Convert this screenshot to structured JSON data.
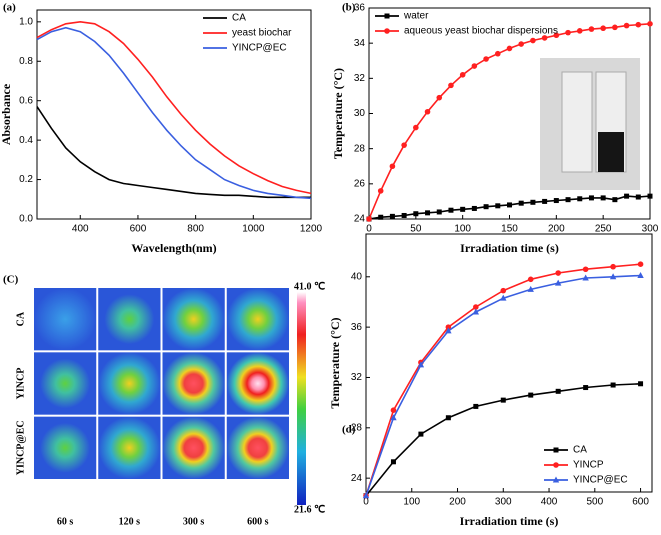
{
  "chart_data": [
    {
      "type": "line",
      "label": "(a)",
      "xlabel": "Wavelength(nm)",
      "ylabel": "Absorbance",
      "x": [
        250,
        300,
        350,
        400,
        450,
        500,
        550,
        600,
        650,
        700,
        750,
        800,
        850,
        900,
        950,
        1000,
        1050,
        1100,
        1150,
        1200
      ],
      "series": [
        {
          "name": "CA",
          "color": "#000000",
          "values": [
            0.57,
            0.46,
            0.36,
            0.29,
            0.24,
            0.2,
            0.18,
            0.17,
            0.16,
            0.15,
            0.14,
            0.13,
            0.125,
            0.12,
            0.12,
            0.115,
            0.11,
            0.11,
            0.11,
            0.11
          ]
        },
        {
          "name": "yeast biochar",
          "color": "#ff2020",
          "values": [
            0.92,
            0.96,
            0.99,
            1.0,
            0.99,
            0.95,
            0.89,
            0.81,
            0.72,
            0.62,
            0.53,
            0.45,
            0.38,
            0.32,
            0.27,
            0.23,
            0.195,
            0.165,
            0.145,
            0.13
          ]
        },
        {
          "name": "YINCP@EC",
          "color": "#3a5fe0",
          "values": [
            0.91,
            0.95,
            0.97,
            0.95,
            0.9,
            0.83,
            0.74,
            0.64,
            0.54,
            0.45,
            0.37,
            0.3,
            0.25,
            0.2,
            0.17,
            0.145,
            0.13,
            0.12,
            0.11,
            0.105
          ]
        }
      ],
      "xlim": [
        250,
        1200
      ],
      "ylim": [
        0,
        1.06
      ],
      "xticks": [
        400,
        600,
        800,
        1000,
        1200
      ],
      "yticks": [
        {
          "value": 0,
          "label": "0.0"
        },
        0.2,
        0.4,
        0.6,
        0.8,
        {
          "value": 1,
          "label": "1.0"
        }
      ],
      "legend": "upper right"
    },
    {
      "type": "line",
      "label": "(b)",
      "xlabel": "Irradiation time (s)",
      "ylabel": "Temperature (°C)",
      "x": [
        0,
        12.5,
        25,
        37.5,
        50,
        62.5,
        75,
        87.5,
        100,
        112.5,
        125,
        137.5,
        150,
        162.5,
        175,
        187.5,
        200,
        212.5,
        225,
        237.5,
        250,
        262.5,
        275,
        287.5,
        300
      ],
      "series": [
        {
          "name": "water",
          "color": "#000000",
          "marker": "square",
          "values": [
            24.0,
            24.1,
            24.15,
            24.2,
            24.3,
            24.35,
            24.4,
            24.5,
            24.55,
            24.6,
            24.7,
            24.75,
            24.8,
            24.9,
            24.95,
            25.0,
            25.05,
            25.1,
            25.15,
            25.2,
            25.2,
            25.1,
            25.3,
            25.25,
            25.3
          ]
        },
        {
          "name": "aqueous yeast biochar dispersions",
          "color": "#ff2020",
          "marker": "circle",
          "values": [
            24.0,
            25.6,
            27.0,
            28.2,
            29.2,
            30.1,
            30.9,
            31.6,
            32.2,
            32.7,
            33.1,
            33.4,
            33.7,
            33.95,
            34.15,
            34.3,
            34.45,
            34.6,
            34.7,
            34.8,
            34.85,
            34.9,
            35.0,
            35.05,
            35.1
          ]
        }
      ],
      "xlim": [
        0,
        300
      ],
      "ylim": [
        24,
        36
      ],
      "xticks": [
        0,
        50,
        100,
        150,
        200,
        250,
        300
      ],
      "yticks": [
        24,
        26,
        28,
        30,
        32,
        34,
        36
      ],
      "legend": "upper left"
    },
    {
      "type": "image-grid",
      "label": "(C)",
      "rows": [
        "CA",
        "YINCP",
        "YINCP@EC"
      ],
      "columns": [
        "60 s",
        "120 s",
        "300 s",
        "600 s"
      ],
      "colorbar_max_label": "41.0 ℃",
      "colorbar_min_label": "21.6 ℃"
    },
    {
      "type": "line",
      "label": "(d)",
      "xlabel": "Irradiation time (s)",
      "ylabel": "Temperature (°C)",
      "x": [
        0,
        60,
        120,
        180,
        240,
        300,
        360,
        420,
        480,
        540,
        600
      ],
      "series": [
        {
          "name": "CA",
          "color": "#000000",
          "marker": "square",
          "values": [
            22.6,
            25.3,
            27.5,
            28.8,
            29.7,
            30.2,
            30.6,
            30.9,
            31.2,
            31.4,
            31.5
          ]
        },
        {
          "name": "YINCP",
          "color": "#ff2020",
          "marker": "circle",
          "values": [
            22.6,
            29.4,
            33.2,
            36.0,
            37.6,
            38.9,
            39.8,
            40.3,
            40.6,
            40.8,
            41.0
          ]
        },
        {
          "name": "YINCP@EC",
          "color": "#3a5fe0",
          "marker": "triangle",
          "values": [
            22.6,
            28.8,
            33.0,
            35.7,
            37.2,
            38.3,
            39.0,
            39.5,
            39.9,
            40.0,
            40.1
          ]
        }
      ],
      "xlim": [
        0,
        625
      ],
      "ylim": [
        22.9,
        43.4
      ],
      "xticks": [
        0,
        100,
        200,
        300,
        400,
        500,
        600
      ],
      "yticks": [
        24,
        28,
        32,
        36,
        40
      ],
      "legend": "lower right"
    }
  ]
}
